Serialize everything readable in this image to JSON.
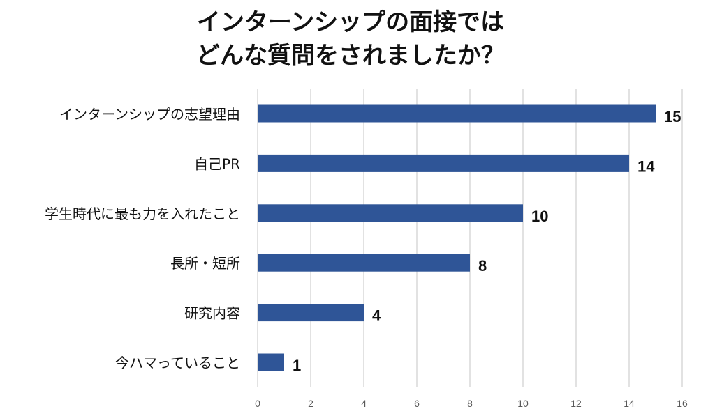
{
  "chart_data": {
    "type": "bar",
    "orientation": "horizontal",
    "title_lines": [
      "インターンシップの面接では",
      "どんな質問をされましたか？"
    ],
    "categories": [
      "インターンシップの志望理由",
      "自己PR",
      "学生時代に最も力を入れたこと",
      "長所・短所",
      "研究内容",
      "今ハマっていること"
    ],
    "values": [
      15,
      14,
      10,
      8,
      4,
      1
    ],
    "data_labels": [
      "15",
      "14",
      "10",
      "8",
      "4",
      "1"
    ],
    "xlim": [
      0,
      16
    ],
    "x_ticks": [
      0,
      2,
      4,
      6,
      8,
      10,
      12,
      14,
      16
    ],
    "grid": "vertical",
    "bar_color": "#2f5597",
    "grid_color": "#d9d9d9"
  }
}
